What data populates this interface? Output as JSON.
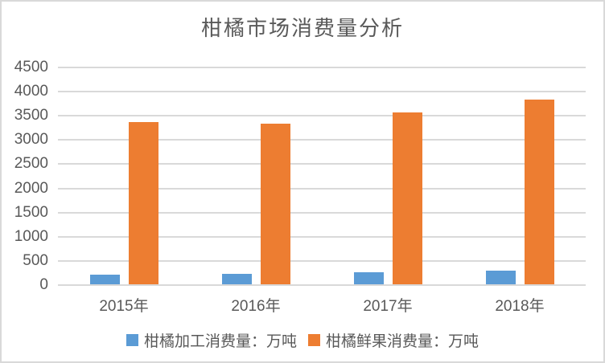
{
  "chart_data": {
    "type": "bar",
    "title": "柑橘市场消费量分析",
    "categories": [
      "2015年",
      "2016年",
      "2017年",
      "2018年"
    ],
    "series": [
      {
        "name": "柑橘加工消费量：万吨",
        "color": "#5B9BD5",
        "values": [
          195,
          210,
          245,
          275
        ]
      },
      {
        "name": "柑橘鲜果消费量：万吨",
        "color": "#ED7D31",
        "values": [
          3350,
          3320,
          3550,
          3820
        ]
      }
    ],
    "xlabel": "",
    "ylabel": "",
    "ylim": [
      0,
      4500
    ],
    "ytick_step": 500,
    "grid": true,
    "legend_position": "bottom"
  },
  "colors": {
    "series_blue": "#5B9BD5",
    "series_orange": "#ED7D31",
    "gridline": "#D9D9D9",
    "border": "#D9D9D9",
    "text": "#595959",
    "background": "#FFFFFF"
  }
}
